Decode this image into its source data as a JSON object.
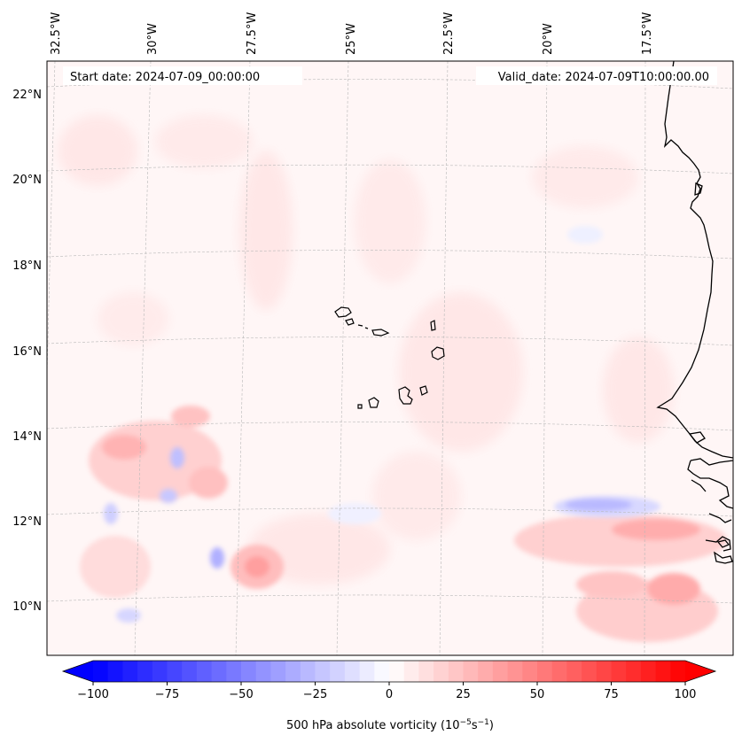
{
  "header": {
    "start_date": "Start date: 2024-07-09_00:00:00",
    "valid_date": "Valid_date: 2024-07-09T10:00:00.00"
  },
  "lon_labels": [
    "32.5°W",
    "30°W",
    "27.5°W",
    "25°W",
    "22.5°W",
    "20°W",
    "17.5°W"
  ],
  "lat_labels": [
    "22°N",
    "20°N",
    "18°N",
    "16°N",
    "14°N",
    "12°N",
    "10°N"
  ],
  "colorbar": {
    "ticks": [
      "−100",
      "−75",
      "−50",
      "−25",
      "0",
      "25",
      "50",
      "75",
      "100"
    ],
    "label": "500 hPa absolute vorticity (10",
    "label_exp1": "−5",
    "label_mid": "s",
    "label_exp2": "−1",
    "label_end": ")",
    "min": -100,
    "max": 100,
    "neg_color": "#0000ff",
    "pos_color": "#ff0000"
  }
}
